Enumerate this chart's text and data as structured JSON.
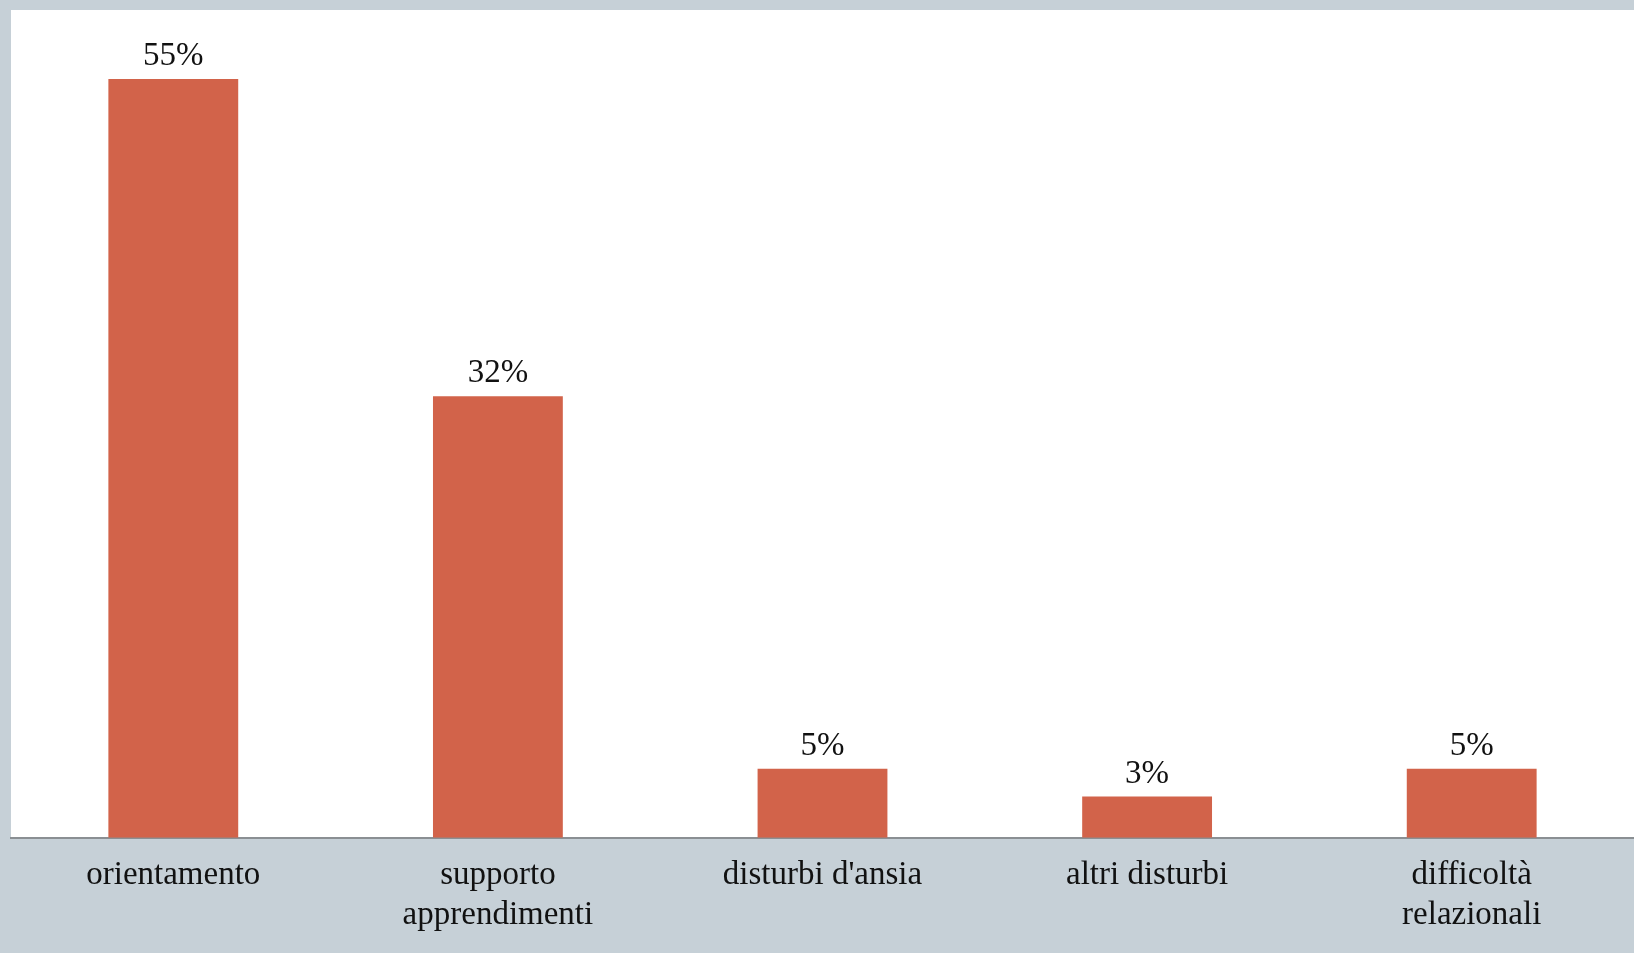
{
  "chart_data": {
    "type": "bar",
    "categories": [
      "orientamento",
      "supporto apprendimenti",
      "disturbi d'ansia",
      "altri disturbi",
      "difficoltà relazionali"
    ],
    "values": [
      55,
      32,
      5,
      3,
      5
    ],
    "value_labels": [
      "55%",
      "32%",
      "5%",
      "3%",
      "5%"
    ],
    "color": "#d2634a"
  }
}
